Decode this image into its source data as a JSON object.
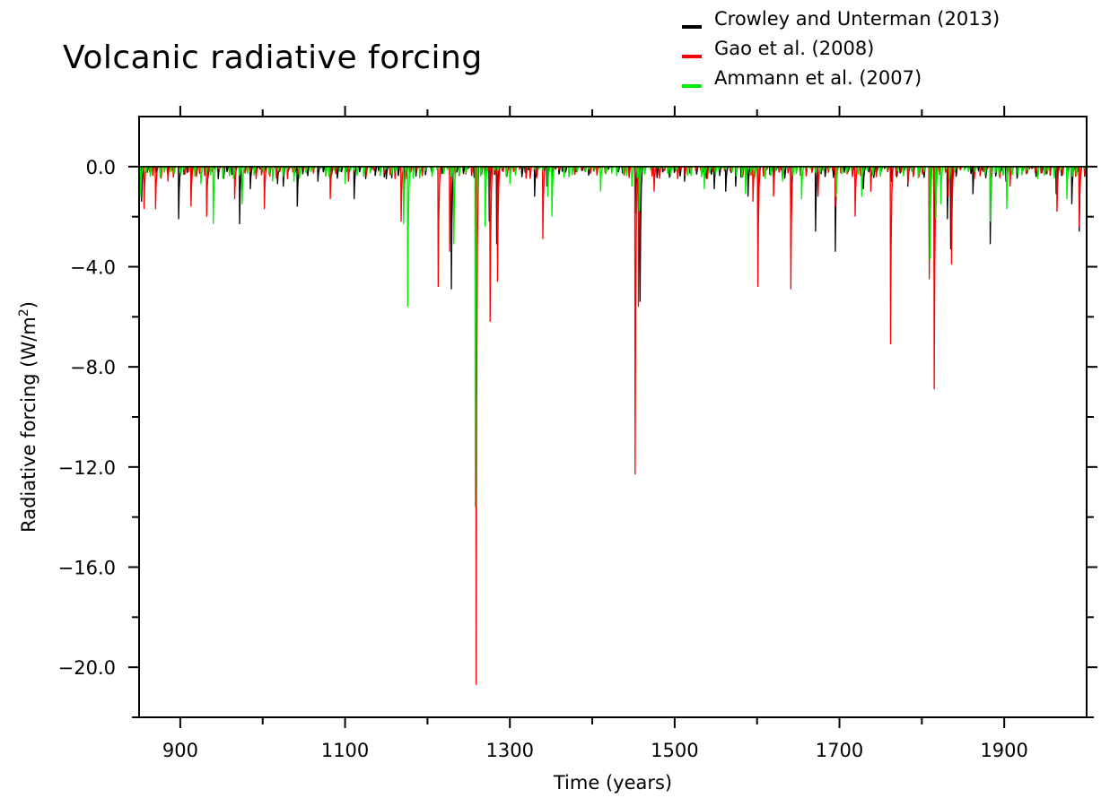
{
  "chart_data": {
    "type": "line",
    "title": "Volcanic radiative forcing",
    "xlabel": "Time (years)",
    "ylabel": "Radiative forcing (W/m",
    "ylabel_sup": "2",
    "ylabel_close": ")",
    "xlim": [
      850,
      2000
    ],
    "ylim": [
      -22.0,
      2.0
    ],
    "xticks_major": [
      900,
      1100,
      1300,
      1500,
      1700,
      1900
    ],
    "xticks_minor": [
      1000,
      1200,
      1400,
      1600,
      1800
    ],
    "xtick_labels": [
      "900",
      "1100",
      "1300",
      "1500",
      "1700",
      "1900"
    ],
    "yticks_major": [
      0.0,
      -4.0,
      -8.0,
      -12.0,
      -16.0,
      -20.0
    ],
    "yticks_minor": [
      -2.0,
      -6.0,
      -10.0,
      -14.0,
      -18.0,
      -22.0
    ],
    "ytick_labels": [
      "0.0",
      "−4.0",
      "−8.0",
      "−12.0",
      "−16.0",
      "−20.0"
    ],
    "grid": false,
    "legend_position": "top-right",
    "series": [
      {
        "name": "Crowley and Unterman (2013)",
        "color": "#000000",
        "baseline": 0.0,
        "events": [
          [
            853,
            -1.4
          ],
          [
            898,
            -2.1
          ],
          [
            913,
            -0.7
          ],
          [
            946,
            -0.5
          ],
          [
            972,
            -2.3
          ],
          [
            985,
            -0.9
          ],
          [
            1018,
            -0.7
          ],
          [
            1025,
            -0.8
          ],
          [
            1042,
            -1.6
          ],
          [
            1067,
            -0.6
          ],
          [
            1111,
            -1.3
          ],
          [
            1125,
            -0.5
          ],
          [
            1150,
            -0.5
          ],
          [
            1172,
            -0.9
          ],
          [
            1186,
            -0.4
          ],
          [
            1229,
            -4.9
          ],
          [
            1259,
            -11.6
          ],
          [
            1275,
            -2.2
          ],
          [
            1284,
            -3.1
          ],
          [
            1330,
            -1.2
          ],
          [
            1345,
            -0.8
          ],
          [
            1452,
            -1.9
          ],
          [
            1458,
            -5.4
          ],
          [
            1512,
            -0.6
          ],
          [
            1548,
            -0.9
          ],
          [
            1562,
            -1.0
          ],
          [
            1574,
            -0.8
          ],
          [
            1589,
            -1.2
          ],
          [
            1601,
            -3.1
          ],
          [
            1641,
            -3.3
          ],
          [
            1671,
            -2.6
          ],
          [
            1695,
            -3.4
          ],
          [
            1729,
            -0.9
          ],
          [
            1763,
            -0.6
          ],
          [
            1783,
            -0.8
          ],
          [
            1809,
            -3.3
          ],
          [
            1815,
            -4.6
          ],
          [
            1831,
            -2.1
          ],
          [
            1835,
            -3.3
          ],
          [
            1862,
            -1.1
          ],
          [
            1883,
            -3.1
          ],
          [
            1902,
            -0.6
          ],
          [
            1963,
            -1.1
          ],
          [
            1982,
            -1.5
          ],
          [
            1991,
            -2.6
          ]
        ]
      },
      {
        "name": "Gao et al. (2008)",
        "color": "#ff0000",
        "baseline": 0.0,
        "events": [
          [
            856,
            -1.7
          ],
          [
            870,
            -1.7
          ],
          [
            885,
            -0.6
          ],
          [
            913,
            -1.6
          ],
          [
            932,
            -2.0
          ],
          [
            966,
            -1.3
          ],
          [
            992,
            -0.5
          ],
          [
            1002,
            -1.7
          ],
          [
            1030,
            -0.5
          ],
          [
            1082,
            -1.3
          ],
          [
            1104,
            -0.6
          ],
          [
            1168,
            -2.2
          ],
          [
            1213,
            -4.8
          ],
          [
            1227,
            -3.4
          ],
          [
            1259,
            -20.7
          ],
          [
            1276,
            -6.2
          ],
          [
            1285,
            -4.6
          ],
          [
            1340,
            -2.9
          ],
          [
            1452,
            -12.3
          ],
          [
            1456,
            -5.6
          ],
          [
            1475,
            -1.0
          ],
          [
            1595,
            -1.4
          ],
          [
            1601,
            -4.8
          ],
          [
            1620,
            -1.2
          ],
          [
            1641,
            -4.9
          ],
          [
            1674,
            -1.2
          ],
          [
            1695,
            -1.6
          ],
          [
            1719,
            -2.0
          ],
          [
            1738,
            -1.0
          ],
          [
            1762,
            -7.1
          ],
          [
            1783,
            -0.7
          ],
          [
            1809,
            -4.5
          ],
          [
            1815,
            -8.9
          ],
          [
            1832,
            -1.2
          ],
          [
            1836,
            -3.9
          ],
          [
            1883,
            -0.7
          ],
          [
            1907,
            -0.8
          ],
          [
            1964,
            -1.8
          ],
          [
            1991,
            -2.4
          ]
        ]
      },
      {
        "name": "Ammann et al. (2007)",
        "color": "#00ee00",
        "baseline": 0.0,
        "events": [
          [
            852,
            -1.2
          ],
          [
            925,
            -0.7
          ],
          [
            940,
            -2.3
          ],
          [
            975,
            -1.5
          ],
          [
            1012,
            -0.6
          ],
          [
            1038,
            -0.6
          ],
          [
            1100,
            -0.7
          ],
          [
            1171,
            -2.3
          ],
          [
            1176,
            -5.6
          ],
          [
            1232,
            -3.1
          ],
          [
            1258,
            -13.6
          ],
          [
            1270,
            -2.4
          ],
          [
            1300,
            -0.7
          ],
          [
            1346,
            -1.2
          ],
          [
            1351,
            -2.0
          ],
          [
            1410,
            -1.0
          ],
          [
            1448,
            -0.8
          ],
          [
            1457,
            -1.8
          ],
          [
            1495,
            -0.4
          ],
          [
            1536,
            -0.9
          ],
          [
            1586,
            -1.1
          ],
          [
            1631,
            -0.6
          ],
          [
            1654,
            -1.3
          ],
          [
            1696,
            -1.2
          ],
          [
            1727,
            -1.2
          ],
          [
            1810,
            -3.7
          ],
          [
            1817,
            -2.1
          ],
          [
            1823,
            -1.5
          ],
          [
            1883,
            -2.2
          ],
          [
            1903,
            -1.7
          ],
          [
            1976,
            -1.3
          ]
        ]
      }
    ]
  }
}
